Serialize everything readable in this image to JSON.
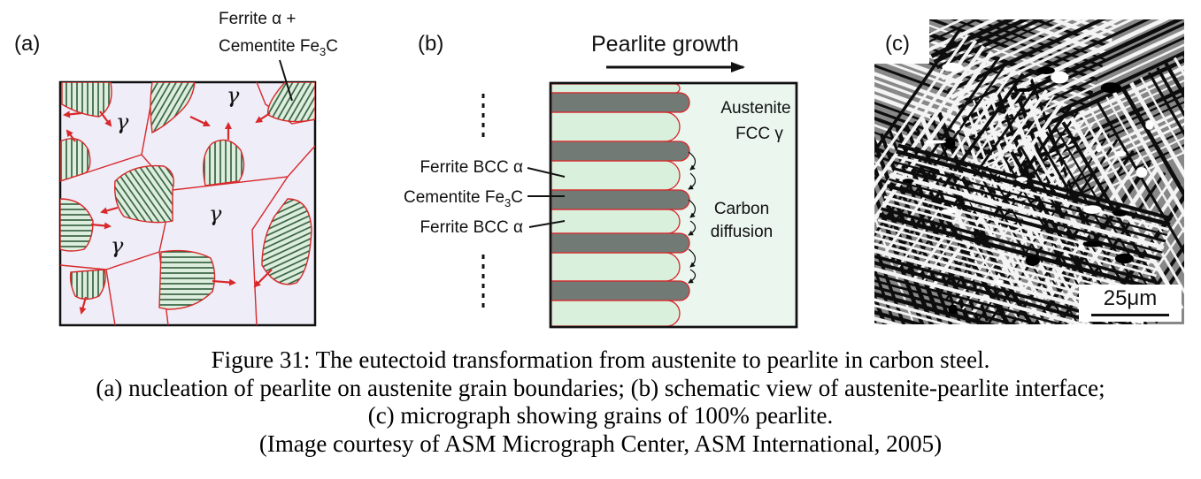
{
  "panel_a": {
    "label": "(a)",
    "phase_symbol": "γ",
    "callout_line1": "Ferrite α  +",
    "callout_line2_prefix": "Cementite Fe",
    "callout_line2_sub": "3",
    "callout_line2_suffix": "C"
  },
  "panel_b": {
    "label": "(b)",
    "growth_label": "Pearlite growth",
    "austenite_line1": "Austenite",
    "austenite_line2": "FCC γ",
    "ferrite_top": "Ferrite BCC α",
    "cementite_prefix": "Cementite Fe",
    "cementite_sub": "3",
    "cementite_suffix": "C",
    "ferrite_bottom": "Ferrite BCC α",
    "carbon_line1": "Carbon",
    "carbon_line2": "diffusion"
  },
  "panel_c": {
    "label": "(c)",
    "scale_label": "25μm"
  },
  "caption": {
    "line1": "Figure 31:  The eutectoid transformation from austenite to pearlite in carbon steel.",
    "line2": "(a) nucleation of pearlite on austenite grain boundaries; (b) schematic view of austenite-pearlite interface;",
    "line3": "(c) micrograph showing grains of 100%  pearlite.",
    "line4": "(Image courtesy of ASM Micrograph Center, ASM International, 2005)"
  },
  "colors": {
    "austenite_a": "#eeedf8",
    "pearlite_fill": "#ddeede",
    "hatch": "#2e5a3a",
    "boundary": "#d8282a",
    "cementite": "#727a76",
    "austenite_b": "#eaf6ee",
    "ferrite_b": "#d9f0dd"
  }
}
